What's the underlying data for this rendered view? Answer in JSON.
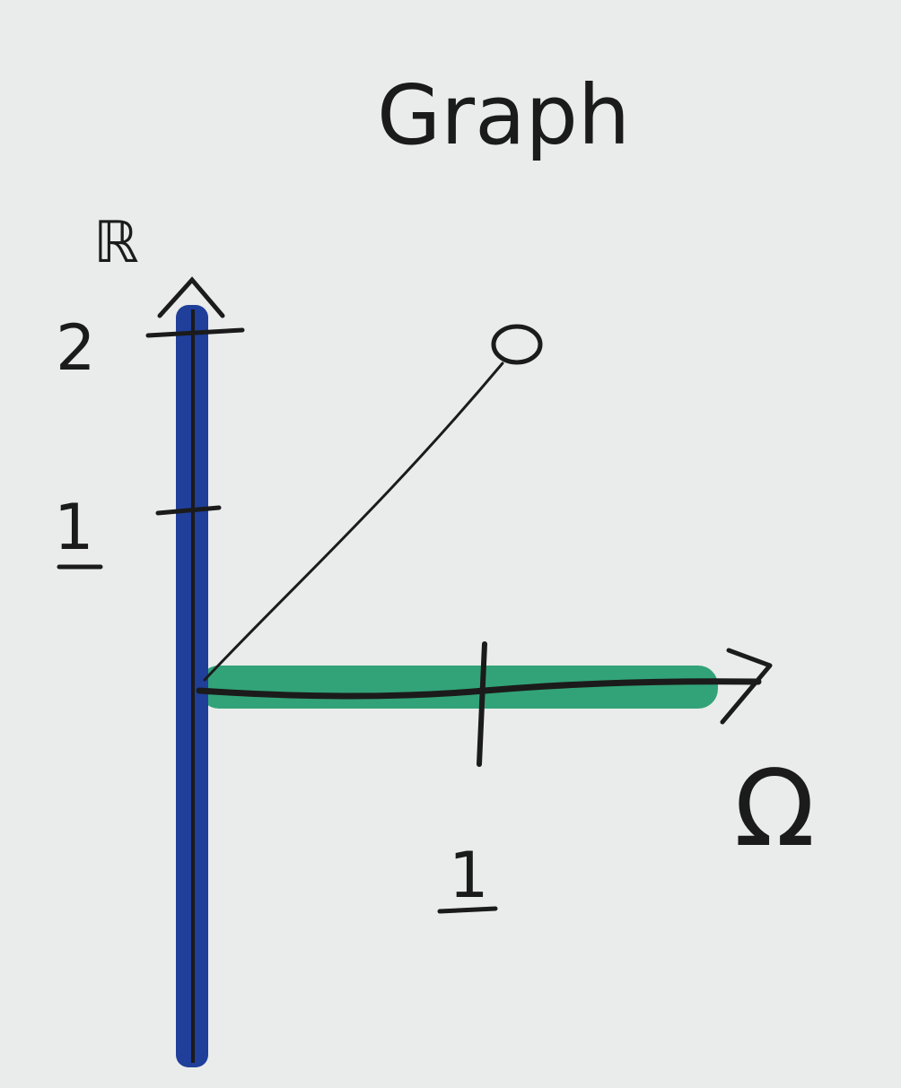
{
  "title": "Graph",
  "axes": {
    "y_label": "ℝ",
    "x_label": "Ω",
    "y_ticks": [
      "1",
      "2"
    ],
    "x_ticks": [
      "1"
    ]
  },
  "colors": {
    "paper": "#e9ecea",
    "ink": "#1b1b1b",
    "y_axis_highlight": "#1f3f9a",
    "x_axis_highlight": "#1e9b6b"
  },
  "curve": {
    "from": {
      "x": 0,
      "y": 0
    },
    "to": {
      "x": 1,
      "y": 2
    },
    "end_marker": "open-circle"
  }
}
